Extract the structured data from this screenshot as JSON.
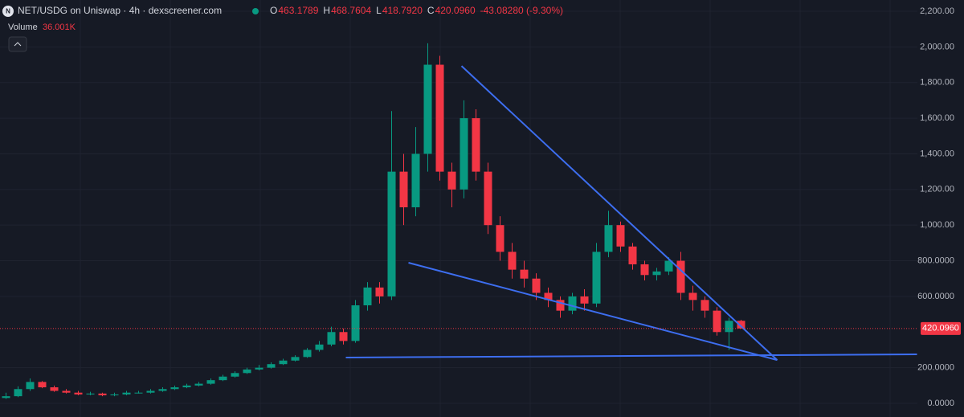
{
  "chart_data": {
    "type": "candlestick",
    "title": "NET/USDG on Uniswap · 4h · dexscreener.com",
    "legend": [
      {
        "key": "O",
        "value": "463.1789"
      },
      {
        "key": "H",
        "value": "468.7604"
      },
      {
        "key": "L",
        "value": "418.7920"
      },
      {
        "key": "C",
        "value": "420.0960"
      }
    ],
    "change": "-43.08280 (-9.30%)",
    "volume_label": "Volume",
    "volume_value": "36.001K",
    "up_color": "#089981",
    "down_color": "#f23645",
    "open": [
      30,
      40,
      80,
      120,
      90,
      70,
      60,
      50,
      55,
      45,
      50,
      60,
      60,
      70,
      80,
      90,
      100,
      110,
      130,
      150,
      170,
      190,
      200,
      220,
      240,
      260,
      300,
      330,
      400,
      350,
      550,
      650,
      600,
      1300,
      1100,
      1400,
      1900,
      1300,
      1200,
      1600,
      1300,
      1000,
      850,
      750,
      700,
      620,
      580,
      520,
      600,
      560,
      850,
      1000,
      880,
      780,
      720,
      740,
      800,
      620,
      580,
      520,
      400,
      463.1789
    ],
    "high": [
      60,
      95,
      140,
      125,
      100,
      80,
      70,
      65,
      60,
      60,
      70,
      70,
      80,
      90,
      100,
      110,
      120,
      140,
      160,
      180,
      200,
      215,
      230,
      250,
      270,
      310,
      350,
      430,
      420,
      580,
      680,
      680,
      1640,
      1400,
      1550,
      2020,
      1950,
      1350,
      1700,
      1650,
      1350,
      1050,
      900,
      800,
      730,
      650,
      600,
      620,
      640,
      900,
      1080,
      1020,
      900,
      800,
      760,
      820,
      850,
      660,
      600,
      540,
      480,
      468.7604
    ],
    "low": [
      25,
      35,
      70,
      85,
      65,
      55,
      45,
      45,
      40,
      40,
      45,
      55,
      55,
      65,
      75,
      85,
      95,
      105,
      125,
      145,
      165,
      185,
      195,
      215,
      235,
      255,
      290,
      320,
      330,
      340,
      520,
      560,
      580,
      1000,
      1050,
      1300,
      1250,
      1100,
      1150,
      1250,
      950,
      800,
      700,
      650,
      580,
      540,
      480,
      500,
      520,
      540,
      820,
      850,
      750,
      690,
      690,
      720,
      580,
      520,
      480,
      380,
      300,
      418.792
    ],
    "close": [
      40,
      80,
      120,
      90,
      70,
      60,
      50,
      55,
      45,
      50,
      60,
      60,
      70,
      80,
      90,
      100,
      110,
      130,
      150,
      170,
      190,
      200,
      220,
      240,
      260,
      300,
      330,
      400,
      350,
      550,
      650,
      600,
      1300,
      1100,
      1400,
      1900,
      1300,
      1200,
      1600,
      1300,
      1000,
      850,
      750,
      700,
      620,
      580,
      520,
      600,
      560,
      850,
      1000,
      880,
      780,
      720,
      740,
      800,
      620,
      580,
      520,
      400,
      463.1789,
      420.096
    ],
    "last_price": 420.096,
    "trendlines": {
      "color": "#3d6ef0",
      "lines": [
        {
          "x": [
            37.8,
            64.0
          ],
          "y": [
            1893,
            243
          ]
        },
        {
          "x": [
            33.4,
            64.0
          ],
          "y": [
            789,
            243
          ]
        },
        {
          "x": [
            28.2,
            75.6
          ],
          "y": [
            257,
            275
          ]
        }
      ]
    },
    "ylim": [
      0,
      2200
    ],
    "yticks": [
      {
        "value": 0,
        "label": "0.0000"
      },
      {
        "value": 200,
        "label": "200.0000"
      },
      {
        "value": 600,
        "label": "600.0000"
      },
      {
        "value": 800,
        "label": "800.0000"
      },
      {
        "value": 1000,
        "label": "1,000.00"
      },
      {
        "value": 1200,
        "label": "1,200.00"
      },
      {
        "value": 1400,
        "label": "1,400.00"
      },
      {
        "value": 1600,
        "label": "1,600.00"
      },
      {
        "value": 1800,
        "label": "1,800.00"
      },
      {
        "value": 2000,
        "label": "2,000.00"
      },
      {
        "value": 2200,
        "label": "2,200.00"
      }
    ],
    "grid": true
  }
}
